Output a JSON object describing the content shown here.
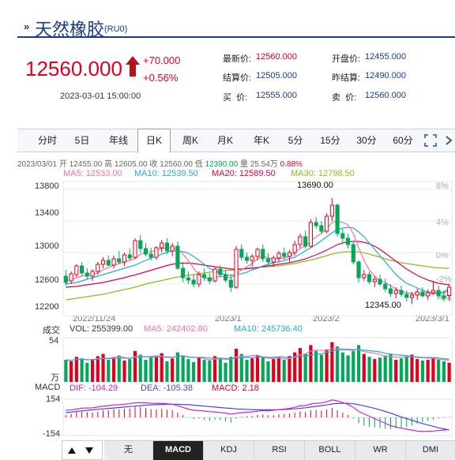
{
  "header": {
    "title_mark": "»",
    "title": "天然橡胶",
    "code": "(RU0)",
    "price": "12560.000",
    "change": "+70.000",
    "change_pct": "+0.56%",
    "timestamp": "2023-03-01 15:00:00"
  },
  "quotes": [
    {
      "label": "最新价:",
      "value": "12560.000",
      "color": "red"
    },
    {
      "label": "开盘价:",
      "value": "12455.000",
      "color": "blue"
    },
    {
      "label": "结算价:",
      "value": "12505.000",
      "color": "blue"
    },
    {
      "label": "昨结算:",
      "value": "12490.000",
      "color": "blue"
    },
    {
      "label": "买  价:",
      "value": "12555.000",
      "color": "blue"
    },
    {
      "label": "卖  价:",
      "value": "12560.000",
      "color": "blue"
    }
  ],
  "tabs": [
    "分时",
    "5日",
    "年线",
    "日K",
    "周K",
    "月K",
    "年K",
    "5分",
    "15分",
    "30分",
    "60分"
  ],
  "active_tab": "日K",
  "ohlc_info": {
    "date": "2023/03/01",
    "open_label": "开",
    "open": "12455.00",
    "high_label": "高",
    "high": "12605.00",
    "close_label": "收",
    "close": "12560.00",
    "low_label": "低",
    "low": "12390.00",
    "volume_label": "量",
    "volume": "25.54万",
    "pct": "0.88%"
  },
  "ma_info": {
    "ma5": "MA5: 12533.00",
    "ma10": "MA10: 12539.50",
    "ma20": "MA20: 12589.50",
    "ma30": "MA30: 12798.50"
  },
  "price_axis": [
    "13800",
    "13400",
    "13000",
    "12600",
    "12200"
  ],
  "pct_axis": [
    "8%",
    "4%",
    "0%",
    "-2%",
    "-4%"
  ],
  "annotations": {
    "high": "13690.00",
    "low": "12345.00"
  },
  "date_axis": [
    "2022/11/24",
    "2023/1",
    "2023/2",
    "2023/3/1"
  ],
  "volume_info": {
    "title": "成交",
    "vol": "VOL: 255399.00",
    "ma5": "MA5: 242402.80",
    "ma10": "MA10: 245736.40",
    "axis_top": "54",
    "axis_unit": "万"
  },
  "macd_info": {
    "title": "MACD",
    "dif": "DIF: -104.29",
    "dea": "DEA: -105.38",
    "macd": "MACD: 2.18",
    "axis_top": "154",
    "axis_bottom": "-154"
  },
  "indicator_tabs": [
    "无",
    "MACD",
    "KDJ",
    "RSI",
    "BOLL",
    "WR",
    "DMI"
  ],
  "active_indicator": "MACD",
  "colors": {
    "up": "#e0001b",
    "down": "#00a85a",
    "ma5": "#ff6fa0",
    "ma10": "#22aadd",
    "ma20": "#e0004e",
    "ma30": "#8cbc1e",
    "dif": "#d020d0",
    "dea": "#4444ee"
  },
  "chart_data": {
    "type": "candlestick",
    "candles": [
      {
        "o": 12700,
        "h": 12780,
        "l": 12580,
        "c": 12620
      },
      {
        "o": 12640,
        "h": 12760,
        "l": 12600,
        "c": 12730
      },
      {
        "o": 12720,
        "h": 12850,
        "l": 12690,
        "c": 12830
      },
      {
        "o": 12830,
        "h": 12880,
        "l": 12700,
        "c": 12740
      },
      {
        "o": 12740,
        "h": 12800,
        "l": 12660,
        "c": 12700
      },
      {
        "o": 12700,
        "h": 12790,
        "l": 12640,
        "c": 12760
      },
      {
        "o": 12760,
        "h": 12880,
        "l": 12720,
        "c": 12850
      },
      {
        "o": 12850,
        "h": 12940,
        "l": 12800,
        "c": 12900
      },
      {
        "o": 12900,
        "h": 12960,
        "l": 12820,
        "c": 12840
      },
      {
        "o": 12840,
        "h": 12960,
        "l": 12800,
        "c": 12920
      },
      {
        "o": 12920,
        "h": 13020,
        "l": 12850,
        "c": 12880
      },
      {
        "o": 12880,
        "h": 13000,
        "l": 12830,
        "c": 12970
      },
      {
        "o": 12970,
        "h": 13050,
        "l": 12900,
        "c": 12930
      },
      {
        "o": 12940,
        "h": 13180,
        "l": 12920,
        "c": 13150
      },
      {
        "o": 13150,
        "h": 13220,
        "l": 13000,
        "c": 13050
      },
      {
        "o": 13050,
        "h": 13120,
        "l": 12950,
        "c": 12980
      },
      {
        "o": 12980,
        "h": 13060,
        "l": 12900,
        "c": 12940
      },
      {
        "o": 12940,
        "h": 13080,
        "l": 12910,
        "c": 13060
      },
      {
        "o": 13060,
        "h": 13160,
        "l": 13000,
        "c": 13120
      },
      {
        "o": 13120,
        "h": 13180,
        "l": 12980,
        "c": 13020
      },
      {
        "o": 13020,
        "h": 13120,
        "l": 12950,
        "c": 13080
      },
      {
        "o": 13080,
        "h": 13140,
        "l": 12780,
        "c": 12800
      },
      {
        "o": 12800,
        "h": 12880,
        "l": 12620,
        "c": 12680
      },
      {
        "o": 12680,
        "h": 12760,
        "l": 12600,
        "c": 12650
      },
      {
        "o": 12650,
        "h": 12720,
        "l": 12560,
        "c": 12600
      },
      {
        "o": 12600,
        "h": 12760,
        "l": 12560,
        "c": 12720
      },
      {
        "o": 12720,
        "h": 12800,
        "l": 12640,
        "c": 12680
      },
      {
        "o": 12680,
        "h": 12740,
        "l": 12600,
        "c": 12640
      },
      {
        "o": 12640,
        "h": 12810,
        "l": 12620,
        "c": 12790
      },
      {
        "o": 12790,
        "h": 12840,
        "l": 12680,
        "c": 12720
      },
      {
        "o": 12720,
        "h": 12780,
        "l": 12620,
        "c": 12650
      },
      {
        "o": 12650,
        "h": 12720,
        "l": 12500,
        "c": 12560
      },
      {
        "o": 12560,
        "h": 13080,
        "l": 12540,
        "c": 13040
      },
      {
        "o": 13040,
        "h": 13100,
        "l": 12900,
        "c": 12940
      },
      {
        "o": 12940,
        "h": 13000,
        "l": 12860,
        "c": 12900
      },
      {
        "o": 12900,
        "h": 12980,
        "l": 12820,
        "c": 12950
      },
      {
        "o": 12950,
        "h": 13060,
        "l": 12900,
        "c": 13040
      },
      {
        "o": 13040,
        "h": 13100,
        "l": 12880,
        "c": 12920
      },
      {
        "o": 12920,
        "h": 12990,
        "l": 12840,
        "c": 12880
      },
      {
        "o": 12880,
        "h": 12960,
        "l": 12820,
        "c": 12930
      },
      {
        "o": 12930,
        "h": 13020,
        "l": 12880,
        "c": 12990
      },
      {
        "o": 12990,
        "h": 13060,
        "l": 12910,
        "c": 12950
      },
      {
        "o": 12950,
        "h": 13030,
        "l": 12880,
        "c": 13000
      },
      {
        "o": 13000,
        "h": 13150,
        "l": 12960,
        "c": 13100
      },
      {
        "o": 13100,
        "h": 13240,
        "l": 13060,
        "c": 13200
      },
      {
        "o": 13200,
        "h": 13280,
        "l": 13050,
        "c": 13080
      },
      {
        "o": 13080,
        "h": 13420,
        "l": 13060,
        "c": 13380
      },
      {
        "o": 13380,
        "h": 13450,
        "l": 13300,
        "c": 13340
      },
      {
        "o": 13340,
        "h": 13400,
        "l": 13240,
        "c": 13270
      },
      {
        "o": 13270,
        "h": 13500,
        "l": 13240,
        "c": 13460
      },
      {
        "o": 13460,
        "h": 13690,
        "l": 13400,
        "c": 13600
      },
      {
        "o": 13600,
        "h": 13620,
        "l": 13200,
        "c": 13240
      },
      {
        "o": 13240,
        "h": 13300,
        "l": 13120,
        "c": 13180
      },
      {
        "o": 13180,
        "h": 13240,
        "l": 13050,
        "c": 13100
      },
      {
        "o": 13100,
        "h": 13140,
        "l": 12850,
        "c": 12880
      },
      {
        "o": 12880,
        "h": 12900,
        "l": 12620,
        "c": 12680
      },
      {
        "o": 12680,
        "h": 12780,
        "l": 12640,
        "c": 12720
      },
      {
        "o": 12720,
        "h": 12760,
        "l": 12600,
        "c": 12630
      },
      {
        "o": 12630,
        "h": 12700,
        "l": 12560,
        "c": 12660
      },
      {
        "o": 12660,
        "h": 12720,
        "l": 12580,
        "c": 12600
      },
      {
        "o": 12600,
        "h": 12670,
        "l": 12500,
        "c": 12540
      },
      {
        "o": 12540,
        "h": 12600,
        "l": 12440,
        "c": 12480
      },
      {
        "o": 12480,
        "h": 12560,
        "l": 12420,
        "c": 12520
      },
      {
        "o": 12520,
        "h": 12580,
        "l": 12440,
        "c": 12470
      },
      {
        "o": 12470,
        "h": 12520,
        "l": 12380,
        "c": 12430
      },
      {
        "o": 12430,
        "h": 12500,
        "l": 12345,
        "c": 12460
      },
      {
        "o": 12460,
        "h": 12540,
        "l": 12400,
        "c": 12500
      },
      {
        "o": 12500,
        "h": 12560,
        "l": 12430,
        "c": 12450
      },
      {
        "o": 12450,
        "h": 12530,
        "l": 12400,
        "c": 12490
      },
      {
        "o": 12490,
        "h": 12640,
        "l": 12460,
        "c": 12520
      },
      {
        "o": 12520,
        "h": 12580,
        "l": 12420,
        "c": 12450
      },
      {
        "o": 12450,
        "h": 12520,
        "l": 12380,
        "c": 12420
      },
      {
        "o": 12455,
        "h": 12605,
        "l": 12390,
        "c": 12560
      }
    ],
    "ylim": [
      12200,
      13900
    ],
    "volumes": [
      30,
      28,
      34,
      32,
      26,
      31,
      35,
      38,
      30,
      33,
      36,
      29,
      31,
      42,
      37,
      30,
      33,
      35,
      39,
      28,
      32,
      40,
      36,
      31,
      27,
      33,
      30,
      29,
      35,
      31,
      26,
      34,
      45,
      38,
      30,
      32,
      36,
      33,
      28,
      31,
      34,
      30,
      35,
      40,
      46,
      38,
      50,
      42,
      37,
      44,
      54,
      48,
      40,
      36,
      42,
      50,
      38,
      34,
      31,
      33,
      36,
      38,
      30,
      32,
      35,
      37,
      31,
      29,
      30,
      33,
      30,
      28,
      26
    ],
    "volume_ylim": [
      0,
      60
    ],
    "macd_hist": [
      20,
      30,
      45,
      50,
      45,
      40,
      48,
      60,
      62,
      70,
      68,
      72,
      75,
      90,
      88,
      80,
      70,
      68,
      72,
      65,
      60,
      40,
      20,
      0,
      -15,
      -10,
      -20,
      -30,
      -20,
      -25,
      -35,
      -45,
      -10,
      5,
      10,
      12,
      20,
      25,
      18,
      20,
      25,
      28,
      32,
      40,
      52,
      45,
      60,
      62,
      58,
      68,
      80,
      60,
      40,
      20,
      -10,
      -50,
      -70,
      -80,
      -85,
      -90,
      -95,
      -100,
      -95,
      -90,
      -80,
      -70,
      -55,
      -40,
      -30,
      -20,
      -10,
      -5,
      2
    ],
    "dif": [
      60,
      62,
      70,
      78,
      80,
      82,
      88,
      96,
      100,
      106,
      108,
      112,
      116,
      124,
      126,
      124,
      120,
      118,
      120,
      116,
      112,
      100,
      85,
      70,
      60,
      58,
      54,
      48,
      46,
      42,
      36,
      28,
      34,
      40,
      44,
      46,
      52,
      58,
      56,
      60,
      66,
      70,
      76,
      86,
      100,
      100,
      114,
      120,
      122,
      132,
      148,
      140,
      126,
      110,
      86,
      50,
      30,
      10,
      -10,
      -30,
      -50,
      -70,
      -82,
      -92,
      -100,
      -108,
      -116,
      -120,
      -118,
      -116,
      -112,
      -108,
      -104
    ],
    "dea": [
      40,
      45,
      50,
      55,
      60,
      64,
      68,
      72,
      76,
      80,
      84,
      88,
      92,
      96,
      100,
      104,
      106,
      108,
      110,
      111,
      112,
      112,
      110,
      108,
      104,
      100,
      96,
      92,
      88,
      84,
      80,
      76,
      72,
      70,
      68,
      66,
      64,
      64,
      64,
      64,
      65,
      67,
      69,
      72,
      77,
      82,
      88,
      94,
      100,
      106,
      114,
      118,
      120,
      120,
      116,
      108,
      98,
      88,
      76,
      64,
      50,
      36,
      20,
      4,
      -10,
      -24,
      -38,
      -52,
      -64,
      -76,
      -88,
      -98,
      -105
    ],
    "macd_ylim": [
      -154,
      154
    ],
    "ma5": [
      12640,
      12660,
      12680,
      12700,
      12720,
      12720,
      12740,
      12780,
      12810,
      12840,
      12860,
      12880,
      12900,
      12920,
      12980,
      13000,
      13010,
      13030,
      13050,
      13060,
      13060,
      13040,
      12980,
      12900,
      12800,
      12720,
      12680,
      12660,
      12680,
      12700,
      12690,
      12680,
      12720,
      12780,
      12820,
      12860,
      12920,
      12960,
      12930,
      12920,
      12920,
      12930,
      12950,
      13000,
      13050,
      13080,
      13150,
      13200,
      13240,
      13300,
      13380,
      13400,
      13380,
      13350,
      13240,
      13060,
      12900,
      12780,
      12700,
      12650,
      12620,
      12580,
      12540,
      12510,
      12490,
      12480,
      12470,
      12470,
      12470,
      12480,
      12480,
      12480,
      12533
    ],
    "ma10": [
      12600,
      12610,
      12620,
      12640,
      12660,
      12680,
      12700,
      12720,
      12740,
      12760,
      12780,
      12800,
      12820,
      12840,
      12870,
      12900,
      12930,
      12950,
      12980,
      13000,
      13020,
      13020,
      13010,
      12990,
      12950,
      12900,
      12850,
      12800,
      12760,
      12740,
      12720,
      12710,
      12720,
      12730,
      12750,
      12780,
      12800,
      12830,
      12850,
      12870,
      12880,
      12900,
      12920,
      12940,
      12980,
      13020,
      13060,
      13100,
      13150,
      13200,
      13250,
      13290,
      13310,
      13320,
      13310,
      13260,
      13200,
      13120,
      13040,
      12960,
      12880,
      12800,
      12720,
      12660,
      12610,
      12580,
      12550,
      12520,
      12500,
      12490,
      12490,
      12500,
      12539
    ],
    "ma20": [
      12560,
      12565,
      12570,
      12580,
      12590,
      12600,
      12610,
      12620,
      12635,
      12650,
      12665,
      12680,
      12700,
      12715,
      12735,
      12755,
      12775,
      12795,
      12815,
      12835,
      12850,
      12860,
      12865,
      12865,
      12860,
      12850,
      12840,
      12830,
      12820,
      12810,
      12800,
      12790,
      12790,
      12790,
      12795,
      12800,
      12810,
      12820,
      12830,
      12840,
      12850,
      12860,
      12870,
      12885,
      12900,
      12920,
      12945,
      12970,
      13000,
      13030,
      13065,
      13100,
      13120,
      13135,
      13140,
      13140,
      13130,
      13110,
      13080,
      13040,
      12990,
      12940,
      12890,
      12840,
      12790,
      12750,
      12710,
      12680,
      12650,
      12630,
      12610,
      12600,
      12589
    ],
    "ma30": [
      12400,
      12410,
      12420,
      12430,
      12440,
      12450,
      12460,
      12470,
      12485,
      12500,
      12515,
      12530,
      12545,
      12560,
      12580,
      12600,
      12615,
      12630,
      12645,
      12660,
      12675,
      12690,
      12700,
      12710,
      12720,
      12730,
      12740,
      12750,
      12760,
      12765,
      12770,
      12775,
      12780,
      12790,
      12800,
      12805,
      12810,
      12815,
      12820,
      12825,
      12830,
      12840,
      12850,
      12860,
      12875,
      12890,
      12905,
      12920,
      12940,
      12960,
      12980,
      12995,
      13005,
      13010,
      13010,
      13005,
      12995,
      12980,
      12960,
      12940,
      12920,
      12900,
      12885,
      12870,
      12860,
      12850,
      12840,
      12830,
      12820,
      12810,
      12805,
      12800,
      12798
    ]
  }
}
